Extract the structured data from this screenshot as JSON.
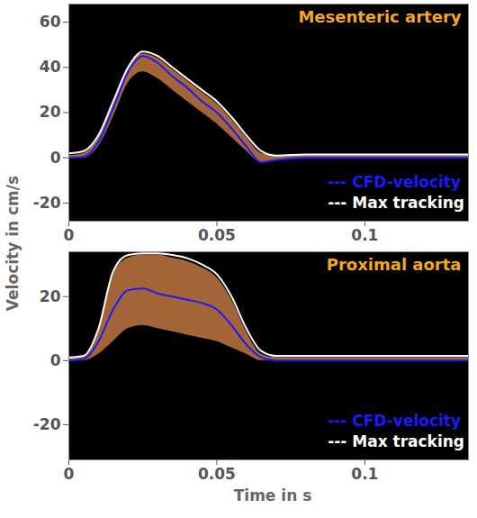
{
  "chart_data": [
    {
      "type": "line",
      "title": "Mesenteric artery",
      "y_label": "Velocity in cm/s",
      "x": [
        0,
        0.005,
        0.01,
        0.015,
        0.02,
        0.025,
        0.03,
        0.035,
        0.04,
        0.045,
        0.05,
        0.055,
        0.06,
        0.065,
        0.07,
        0.08,
        0.1,
        0.135
      ],
      "series": [
        {
          "name": "--- CFD-velocity",
          "color": "#1a1aff",
          "line_style": "solid",
          "values": [
            0,
            0.5,
            7,
            22,
            38,
            45,
            42,
            36,
            31,
            25,
            20,
            13,
            5,
            -2,
            -1,
            0,
            0,
            0
          ]
        },
        {
          "name": "--- Max tracking",
          "color": "#ffffff",
          "line_style": "solid",
          "values": [
            2,
            3,
            10,
            25,
            40,
            47,
            45,
            40,
            35,
            30,
            25,
            18,
            10,
            3,
            1,
            1.5,
            1.5,
            1.5
          ]
        }
      ],
      "spectrum_band": {
        "low": [
          0,
          0,
          5,
          18,
          33,
          38,
          35,
          30,
          25,
          20,
          15,
          9,
          3,
          -2,
          -1,
          0,
          0,
          0
        ],
        "high": [
          1,
          2,
          9,
          24,
          39,
          46,
          44,
          39,
          34,
          29,
          24,
          17,
          9,
          2,
          1,
          1,
          1,
          1
        ]
      },
      "xlim": [
        0,
        0.135
      ],
      "ylim": [
        -28,
        68
      ],
      "xticks": [
        0,
        0.05,
        0.1
      ],
      "yticks": [
        -20,
        0,
        20,
        40,
        60
      ],
      "legend": "bottom-right"
    },
    {
      "type": "line",
      "title": "Proximal aorta",
      "x_label": "Time in s",
      "x": [
        0,
        0.005,
        0.01,
        0.015,
        0.02,
        0.025,
        0.03,
        0.035,
        0.04,
        0.045,
        0.05,
        0.055,
        0.06,
        0.065,
        0.07,
        0.08,
        0.1,
        0.135
      ],
      "series": [
        {
          "name": "--- CFD-velocity",
          "color": "#1a1aff",
          "line_style": "solid",
          "values": [
            0,
            0.5,
            6,
            16,
            22,
            22.5,
            21,
            20,
            19,
            18,
            16,
            11,
            5,
            1,
            0,
            0,
            0,
            0
          ]
        },
        {
          "name": "--- Max tracking",
          "color": "#ffffff",
          "line_style": "solid",
          "values": [
            1,
            1.5,
            10,
            28,
            33,
            33.5,
            33.5,
            33,
            32,
            30,
            27,
            20,
            10,
            3,
            1.5,
            1.5,
            1.5,
            1.5
          ]
        }
      ],
      "spectrum_band": {
        "low": [
          0,
          0,
          2,
          6,
          10,
          11,
          10,
          9,
          8,
          7,
          6,
          4,
          2,
          0,
          0,
          0,
          0,
          0
        ],
        "high": [
          1,
          1,
          9,
          27,
          32,
          33,
          33,
          32,
          31,
          29,
          26,
          19,
          9,
          2,
          1,
          1,
          1,
          1
        ]
      },
      "xlim": [
        0,
        0.135
      ],
      "ylim": [
        -31,
        34
      ],
      "xticks": [
        0,
        0.05,
        0.1
      ],
      "yticks": [
        -20,
        0,
        20
      ],
      "legend": "bottom-right"
    }
  ]
}
